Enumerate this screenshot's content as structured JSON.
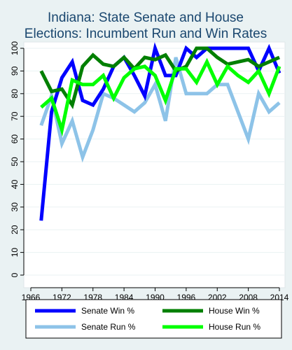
{
  "chart_data": {
    "type": "line",
    "title": [
      "Indiana: State Senate and House",
      "Elections: Incumbent Run and Win Rates"
    ],
    "xlabel": "",
    "ylabel": "",
    "xlim": [
      1966,
      2015
    ],
    "ylim": [
      0,
      100
    ],
    "xticks": [
      1966,
      1972,
      1978,
      1984,
      1990,
      1996,
      2002,
      2008,
      2014
    ],
    "yticks": [
      0,
      10,
      20,
      30,
      40,
      50,
      60,
      70,
      80,
      90,
      100
    ],
    "grid": "horizontal",
    "legend_position": "bottom",
    "series": [
      {
        "name": "Senate Win %",
        "color": "#0000ff",
        "width": 5,
        "x": [
          1968,
          1970,
          1972,
          1974,
          1976,
          1978,
          1980,
          1982,
          1984,
          1986,
          1988,
          1990,
          1992,
          1994,
          1996,
          1998,
          2000,
          2002,
          2004,
          2006,
          2008,
          2010,
          2012,
          2014
        ],
        "y": [
          24,
          72,
          87,
          94,
          77,
          75,
          82,
          92,
          96,
          88,
          79,
          100,
          88,
          88,
          100,
          96,
          100,
          100,
          100,
          100,
          100,
          90,
          100,
          89
        ]
      },
      {
        "name": "House Win %",
        "color": "#007f00",
        "width": 5,
        "x": [
          1968,
          1970,
          1972,
          1974,
          1976,
          1978,
          1980,
          1982,
          1984,
          1986,
          1988,
          1990,
          1992,
          1994,
          1996,
          1998,
          2000,
          2002,
          2004,
          2006,
          2008,
          2010,
          2012,
          2014
        ],
        "y": [
          90,
          81,
          82,
          75,
          92,
          97,
          93,
          92,
          96,
          91,
          96,
          95,
          97,
          90,
          92,
          100,
          100,
          96,
          93,
          94,
          95,
          92,
          94,
          96
        ]
      },
      {
        "name": "Senate Run %",
        "color": "#8dc3e8",
        "width": 5,
        "x": [
          1968,
          1970,
          1972,
          1974,
          1976,
          1978,
          1980,
          1982,
          1984,
          1986,
          1988,
          1990,
          1992,
          1994,
          1996,
          1998,
          2000,
          2002,
          2004,
          2006,
          2008,
          2010,
          2012,
          2014
        ],
        "y": [
          66,
          79,
          58,
          68,
          52,
          64,
          80,
          78,
          75,
          72,
          76,
          84,
          68,
          96,
          80,
          80,
          80,
          84,
          84,
          72,
          60,
          80,
          72,
          76
        ]
      },
      {
        "name": "House Run %",
        "color": "#00ff00",
        "width": 5,
        "x": [
          1968,
          1970,
          1972,
          1974,
          1976,
          1978,
          1980,
          1982,
          1984,
          1986,
          1988,
          1990,
          1992,
          1994,
          1996,
          1998,
          2000,
          2002,
          2004,
          2006,
          2008,
          2010,
          2012,
          2014
        ],
        "y": [
          74,
          78,
          64,
          86,
          84,
          84,
          88,
          78,
          87,
          91,
          92,
          88,
          77,
          91,
          91,
          85,
          94,
          84,
          92,
          88,
          85,
          90,
          80,
          92
        ]
      }
    ]
  },
  "colors": {
    "background": "#eaf2f3",
    "plot_background": "#ffffff",
    "title": "#1a476f",
    "grid": "#eaf2f3"
  }
}
